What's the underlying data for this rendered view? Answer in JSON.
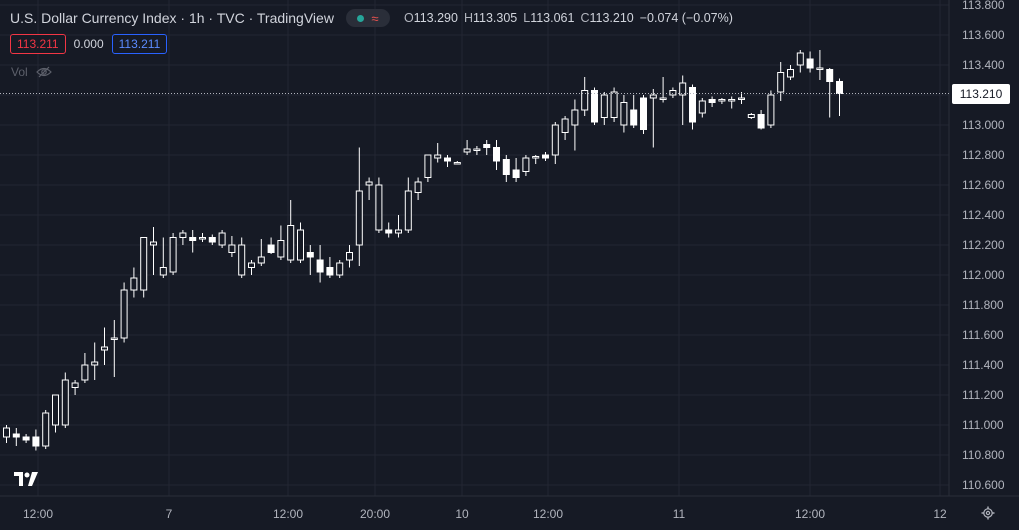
{
  "header": {
    "title": "U.S. Dollar Currency Index · 1h · TVC · TradingView",
    "ohlc": {
      "o_label": "O",
      "o_value": "113.290",
      "h_label": "H",
      "h_value": "113.305",
      "l_label": "L",
      "l_value": "113.061",
      "c_label": "C",
      "c_value": "113.210",
      "change": "−0.074 (−0.07%)"
    }
  },
  "quote": {
    "sell": "113.211",
    "spread": "0.000",
    "buy": "113.211"
  },
  "volume_label": "Vol",
  "last_price_label": "113.210",
  "colors": {
    "background": "#161a25",
    "candle": "#ffffff",
    "grid": "#232632",
    "text": "#b2b5be"
  },
  "chart_data": {
    "type": "candlestick",
    "y_ticks": [
      "113.800",
      "113.600",
      "113.400",
      "113.200",
      "113.000",
      "112.800",
      "112.600",
      "112.400",
      "112.200",
      "112.000",
      "111.800",
      "111.600",
      "111.400",
      "111.200",
      "111.000",
      "110.800",
      "110.600"
    ],
    "ylim": [
      110.6,
      113.8
    ],
    "x_ticks": [
      "12:00",
      "7",
      "12:00",
      "20:00",
      "10",
      "12:00",
      "11",
      "12:00",
      "12"
    ],
    "last_price": 113.21,
    "candles": [
      [
        110.92,
        111.0,
        110.88,
        110.98
      ],
      [
        110.94,
        110.98,
        110.86,
        110.92
      ],
      [
        110.92,
        110.94,
        110.88,
        110.9
      ],
      [
        110.92,
        110.97,
        110.83,
        110.86
      ],
      [
        110.86,
        111.1,
        110.84,
        111.08
      ],
      [
        111.0,
        111.2,
        110.95,
        111.2
      ],
      [
        111.0,
        111.35,
        110.98,
        111.3
      ],
      [
        111.25,
        111.3,
        111.2,
        111.28
      ],
      [
        111.3,
        111.48,
        111.28,
        111.4
      ],
      [
        111.4,
        111.55,
        111.3,
        111.42
      ],
      [
        111.5,
        111.65,
        111.4,
        111.52
      ],
      [
        111.58,
        111.7,
        111.32,
        111.58
      ],
      [
        111.58,
        111.95,
        111.55,
        111.9
      ],
      [
        111.9,
        112.05,
        111.85,
        111.98
      ],
      [
        111.9,
        112.25,
        111.85,
        112.25
      ],
      [
        112.2,
        112.32,
        112.0,
        112.22
      ],
      [
        112.0,
        112.25,
        111.98,
        112.05
      ],
      [
        112.02,
        112.28,
        112.0,
        112.25
      ],
      [
        112.25,
        112.3,
        112.2,
        112.28
      ],
      [
        112.25,
        112.3,
        112.15,
        112.23
      ],
      [
        112.24,
        112.28,
        112.22,
        112.25
      ],
      [
        112.25,
        112.27,
        112.2,
        112.22
      ],
      [
        112.2,
        112.3,
        112.18,
        112.28
      ],
      [
        112.15,
        112.26,
        112.12,
        112.2
      ],
      [
        112.0,
        112.25,
        111.98,
        112.2
      ],
      [
        112.05,
        112.1,
        112.0,
        112.08
      ],
      [
        112.08,
        112.24,
        112.06,
        112.12
      ],
      [
        112.2,
        112.25,
        112.14,
        112.15
      ],
      [
        112.12,
        112.33,
        112.1,
        112.23
      ],
      [
        112.1,
        112.5,
        112.08,
        112.33
      ],
      [
        112.1,
        112.35,
        112.08,
        112.3
      ],
      [
        112.15,
        112.2,
        112.0,
        112.12
      ],
      [
        112.1,
        112.2,
        111.95,
        112.02
      ],
      [
        112.05,
        112.12,
        111.98,
        112.0
      ],
      [
        112.0,
        112.1,
        111.98,
        112.08
      ],
      [
        112.1,
        112.2,
        112.05,
        112.15
      ],
      [
        112.2,
        112.85,
        112.06,
        112.56
      ],
      [
        112.6,
        112.65,
        112.5,
        112.62
      ],
      [
        112.3,
        112.65,
        112.28,
        112.6
      ],
      [
        112.3,
        112.35,
        112.25,
        112.28
      ],
      [
        112.28,
        112.4,
        112.25,
        112.3
      ],
      [
        112.3,
        112.65,
        112.28,
        112.56
      ],
      [
        112.55,
        112.65,
        112.5,
        112.62
      ],
      [
        112.65,
        112.8,
        112.62,
        112.8
      ],
      [
        112.78,
        112.88,
        112.75,
        112.8
      ],
      [
        112.78,
        112.8,
        112.72,
        112.76
      ],
      [
        112.74,
        112.76,
        112.74,
        112.75
      ],
      [
        112.82,
        112.9,
        112.8,
        112.84
      ],
      [
        112.83,
        112.86,
        112.8,
        112.84
      ],
      [
        112.87,
        112.9,
        112.8,
        112.85
      ],
      [
        112.85,
        112.9,
        112.7,
        112.76
      ],
      [
        112.77,
        112.8,
        112.62,
        112.67
      ],
      [
        112.7,
        112.78,
        112.62,
        112.65
      ],
      [
        112.69,
        112.8,
        112.66,
        112.78
      ],
      [
        112.78,
        112.8,
        112.74,
        112.79
      ],
      [
        112.8,
        112.82,
        112.76,
        112.78
      ],
      [
        112.8,
        113.02,
        112.74,
        113.0
      ],
      [
        112.95,
        113.06,
        112.9,
        113.04
      ],
      [
        113.0,
        113.17,
        112.83,
        113.1
      ],
      [
        113.1,
        113.32,
        113.06,
        113.23
      ],
      [
        113.23,
        113.25,
        113.0,
        113.02
      ],
      [
        113.05,
        113.22,
        113.0,
        113.2
      ],
      [
        113.05,
        113.25,
        113.02,
        113.22
      ],
      [
        113.0,
        113.2,
        112.95,
        113.15
      ],
      [
        113.1,
        113.2,
        112.98,
        113.0
      ],
      [
        113.18,
        113.2,
        112.94,
        112.97
      ],
      [
        113.18,
        113.24,
        112.85,
        113.2
      ],
      [
        113.18,
        113.32,
        113.15,
        113.18
      ],
      [
        113.2,
        113.25,
        113.18,
        113.23
      ],
      [
        113.2,
        113.33,
        113.0,
        113.28
      ],
      [
        113.25,
        113.27,
        112.97,
        113.02
      ],
      [
        113.08,
        113.18,
        113.05,
        113.16
      ],
      [
        113.17,
        113.19,
        113.12,
        113.15
      ],
      [
        113.16,
        113.18,
        113.14,
        113.17
      ],
      [
        113.16,
        113.19,
        113.11,
        113.17
      ],
      [
        113.17,
        113.22,
        113.14,
        113.18
      ],
      [
        113.05,
        113.08,
        113.04,
        113.07
      ],
      [
        113.07,
        113.1,
        112.97,
        112.98
      ],
      [
        113.0,
        113.23,
        112.98,
        113.2
      ],
      [
        113.22,
        113.42,
        113.16,
        113.35
      ],
      [
        113.32,
        113.4,
        113.3,
        113.37
      ],
      [
        113.4,
        113.5,
        113.35,
        113.48
      ],
      [
        113.44,
        113.49,
        113.35,
        113.38
      ],
      [
        113.38,
        113.5,
        113.3,
        113.38
      ],
      [
        113.37,
        113.38,
        113.05,
        113.29
      ],
      [
        113.29,
        113.31,
        113.06,
        113.21
      ]
    ]
  }
}
